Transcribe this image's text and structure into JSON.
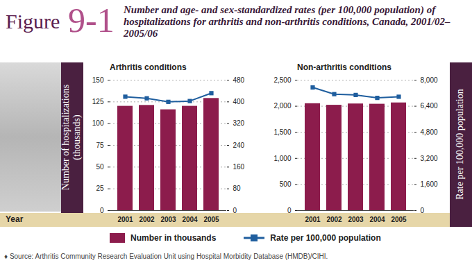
{
  "figure_label": "Figure",
  "figure_number": "9-1",
  "title": "Number and age- and sex-standardized rates (per 100,000 population) of hospitalizations for arthritis and non-arthritis conditions, Canada, 2001/02–2005/06",
  "source": "♦ Source: Arthritis Community Research Evaluation Unit using Hospital Morbidity Database (HMDB)/CIHI.",
  "chart_data": [
    {
      "type": "bar",
      "title": "Arthritis conditions",
      "xlabel": "Year",
      "ylabel": "Number of hospitalizations (thousands)",
      "categories": [
        "2001",
        "2002",
        "2003",
        "2004",
        "2005"
      ],
      "series": [
        {
          "name": "Number in thousands",
          "type": "bar",
          "color": "#8c1c4c",
          "values": [
            120,
            121,
            116,
            120,
            129
          ]
        },
        {
          "name": "Rate per 100,000 population",
          "type": "line",
          "axis": "y2",
          "color": "#1f5e9e",
          "marker": "square",
          "values": [
            419,
            413,
            400,
            403,
            432
          ]
        }
      ],
      "ylim": [
        0,
        150
      ],
      "yticks": [
        0,
        25,
        50,
        75,
        100,
        125,
        150
      ],
      "y2lim": [
        0,
        480
      ],
      "y2ticks": [
        0,
        80,
        160,
        240,
        320,
        400,
        480
      ],
      "grid": true,
      "legend": "bottom"
    },
    {
      "type": "bar",
      "title": "Non-arthritis conditions",
      "y2label": "Rate per 100,000 population",
      "categories": [
        "2001",
        "2002",
        "2003",
        "2004",
        "2005"
      ],
      "series": [
        {
          "name": "Number in thousands",
          "type": "bar",
          "color": "#8c1c4c",
          "values": [
            2050,
            2020,
            2045,
            2040,
            2065
          ]
        },
        {
          "name": "Rate per 100,000 population",
          "type": "line",
          "axis": "y2",
          "color": "#1f5e9e",
          "marker": "square",
          "values": [
            7550,
            7140,
            7090,
            6910,
            6980
          ]
        }
      ],
      "ylim": [
        0,
        2500
      ],
      "yticks": [
        0,
        500,
        {
          "value": 1000,
          "label": "1,000"
        },
        {
          "value": 1500,
          "label": "1,500"
        },
        {
          "value": 2000,
          "label": "2,000"
        },
        {
          "value": 2500,
          "label": "2,500"
        }
      ],
      "y2lim": [
        0,
        8000
      ],
      "y2ticks": [
        0,
        {
          "value": 1600,
          "label": "1,600"
        },
        {
          "value": 3200,
          "label": "3,200"
        },
        {
          "value": 4800,
          "label": "4,800"
        },
        {
          "value": 6400,
          "label": "6,400"
        },
        {
          "value": 8000,
          "label": "8,000"
        }
      ],
      "grid": true
    }
  ]
}
